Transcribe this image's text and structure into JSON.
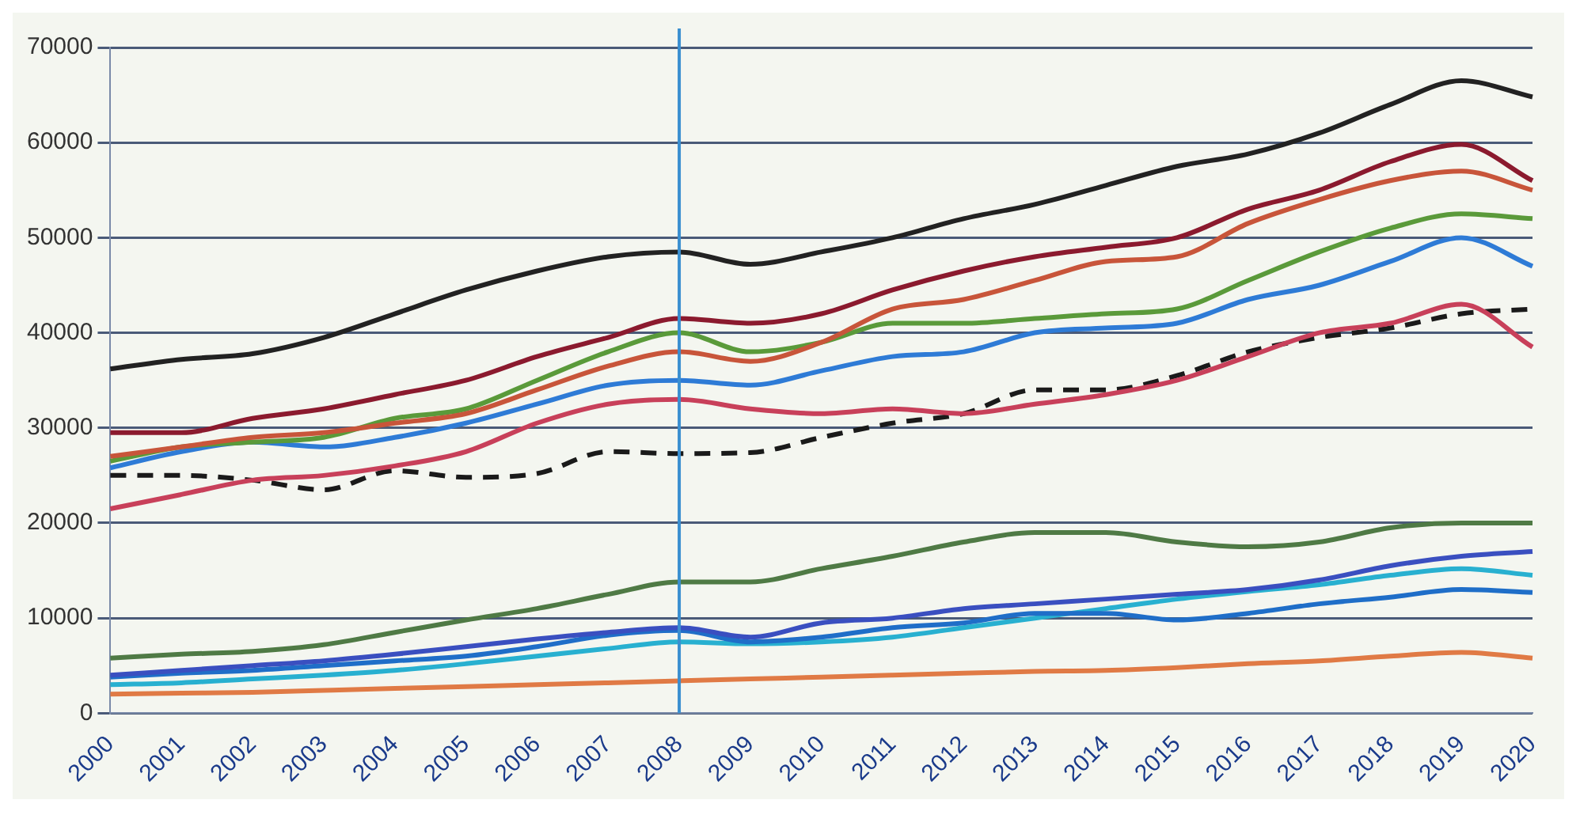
{
  "chart_data": {
    "type": "line",
    "categories": [
      "2000",
      "2001",
      "2002",
      "2003",
      "2004",
      "2005",
      "2006",
      "2007",
      "2008",
      "2009",
      "2010",
      "2011",
      "2012",
      "2013",
      "2014",
      "2015",
      "2016",
      "2017",
      "2018",
      "2019",
      "2020"
    ],
    "series": [
      {
        "color": "#222222",
        "values": [
          36200,
          37200,
          37800,
          39500,
          42000,
          44500,
          46500,
          48000,
          48500,
          47200,
          48500,
          50000,
          52000,
          53500,
          55500,
          57500,
          58800,
          61000,
          64000,
          66500,
          64800
        ]
      },
      {
        "color": "#8b1a2e",
        "values": [
          29500,
          29500,
          31000,
          32000,
          33500,
          35000,
          37500,
          39500,
          41500,
          41000,
          42000,
          44500,
          46500,
          48000,
          49000,
          50000,
          53000,
          55000,
          58000,
          59800,
          56000
        ]
      },
      {
        "color": "#c8553a",
        "values": [
          27000,
          28000,
          29000,
          29500,
          30500,
          31500,
          34000,
          36500,
          38000,
          37000,
          39000,
          42500,
          43500,
          45500,
          47500,
          48000,
          51500,
          54000,
          56000,
          57000,
          55000
        ]
      },
      {
        "color": "#5a9a3a",
        "values": [
          26500,
          28000,
          28500,
          29000,
          31000,
          32000,
          35000,
          38000,
          40000,
          38000,
          39000,
          41000,
          41000,
          41500,
          42000,
          42500,
          45500,
          48500,
          51000,
          52500,
          52000
        ]
      },
      {
        "color": "#2e7bd6",
        "values": [
          25800,
          27500,
          28500,
          28000,
          29000,
          30500,
          32500,
          34500,
          35000,
          34500,
          36000,
          37500,
          38000,
          40000,
          40500,
          41000,
          43500,
          45000,
          47500,
          50000,
          47000
        ]
      },
      {
        "color": "#c8405a",
        "values": [
          21500,
          23000,
          24500,
          25000,
          26000,
          27500,
          30500,
          32500,
          33000,
          32000,
          31500,
          32000,
          31500,
          32500,
          33500,
          35000,
          37500,
          40000,
          41000,
          43000,
          38500
        ]
      },
      {
        "color": "#1a1a1a",
        "line_style": "dashed",
        "values": [
          25000,
          25000,
          24500,
          23500,
          25500,
          24800,
          25200,
          27500,
          27300,
          27400,
          29000,
          30500,
          31500,
          34000,
          34000,
          35500,
          38000,
          39500,
          40500,
          42000,
          42500
        ]
      },
      {
        "color": "#4f7a45",
        "values": [
          5800,
          6200,
          6500,
          7200,
          8500,
          9800,
          11000,
          12500,
          13800,
          13800,
          15200,
          16500,
          18000,
          19000,
          19000,
          18000,
          17500,
          18000,
          19500,
          20000,
          20000
        ]
      },
      {
        "color": "#3a4fc0",
        "values": [
          4000,
          4500,
          5000,
          5500,
          6200,
          7000,
          7800,
          8500,
          9000,
          8000,
          9500,
          10000,
          11000,
          11500,
          12000,
          12500,
          13000,
          14000,
          15500,
          16500,
          17000
        ]
      },
      {
        "color": "#1f6ec8",
        "values": [
          3800,
          4200,
          4500,
          5000,
          5500,
          6000,
          7000,
          8200,
          8700,
          7500,
          8000,
          9000,
          9500,
          10500,
          10500,
          9800,
          10500,
          11500,
          12200,
          13000,
          12700
        ]
      },
      {
        "color": "#28b0d0",
        "values": [
          3000,
          3200,
          3600,
          4000,
          4500,
          5200,
          6000,
          6800,
          7500,
          7300,
          7500,
          8000,
          9000,
          10000,
          11000,
          12000,
          12800,
          13500,
          14500,
          15200,
          14500
        ]
      },
      {
        "color": "#e07a45",
        "values": [
          2000,
          2100,
          2200,
          2400,
          2600,
          2800,
          3000,
          3200,
          3400,
          3600,
          3800,
          4000,
          4200,
          4400,
          4500,
          4800,
          5200,
          5500,
          6000,
          6400,
          5800
        ]
      }
    ],
    "ylim": [
      0,
      70000
    ],
    "yticks": [
      0,
      10000,
      20000,
      30000,
      40000,
      50000,
      60000,
      70000
    ],
    "grid": "y",
    "legend": false,
    "marker": "none",
    "line_style": "solid",
    "ref_lines": [
      {
        "axis": "x",
        "value": "2008",
        "color": "#3a8fd0"
      }
    ]
  }
}
